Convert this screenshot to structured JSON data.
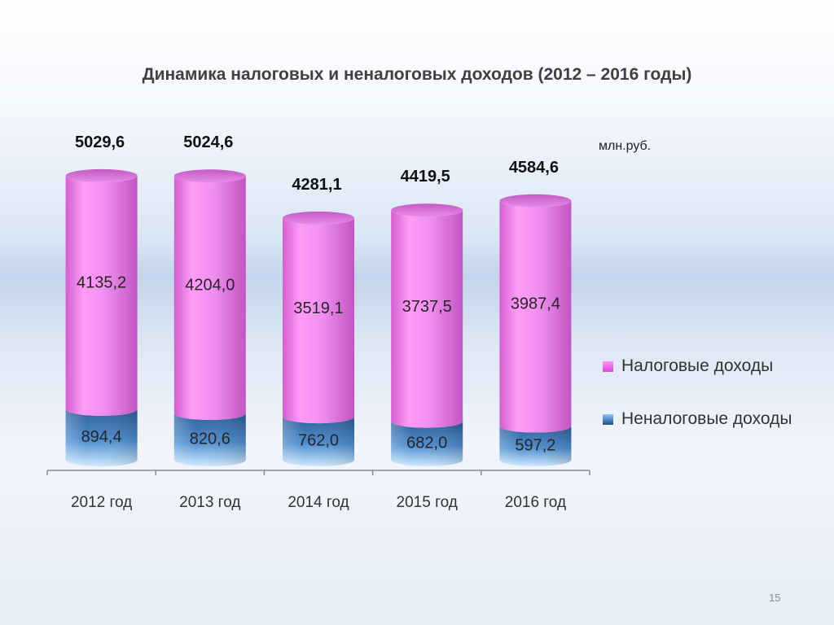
{
  "title": "Динамика налоговых и неналоговых  доходов  (2012 – 2016 годы)",
  "unit": "млн.руб.",
  "page_number": "15",
  "legend": [
    {
      "label": "Налоговые доходы",
      "color": "#f08ef0"
    },
    {
      "label": "Неналоговые доходы",
      "color": "#2d5f97"
    }
  ],
  "chart_data": {
    "type": "bar",
    "stacked": true,
    "categories": [
      "2012 год",
      "2013 год",
      "2014 год",
      "2015 год",
      "2016 год"
    ],
    "series": [
      {
        "name": "Неналоговые доходы",
        "values": [
          894.4,
          820.6,
          762.0,
          682.0,
          597.2
        ],
        "labels": [
          "894,4",
          "820,6",
          "762,0",
          "682,0",
          "597,2"
        ],
        "color": "#2d5f97"
      },
      {
        "name": "Налоговые доходы",
        "values": [
          4135.2,
          4204.0,
          3519.1,
          3737.5,
          3987.4
        ],
        "labels": [
          "4135,2",
          "4204,0",
          "3519,1",
          "3737,5",
          "3987,4"
        ],
        "color": "#f08ef0"
      }
    ],
    "totals": [
      5029.6,
      5024.6,
      4281.1,
      4419.5,
      4584.6
    ],
    "total_labels": [
      "5029,6",
      "5024,6",
      "4281,1",
      "4419,5",
      "4584,6"
    ],
    "ylim": [
      0,
      5100
    ],
    "legend_position": "right",
    "grid": false
  }
}
